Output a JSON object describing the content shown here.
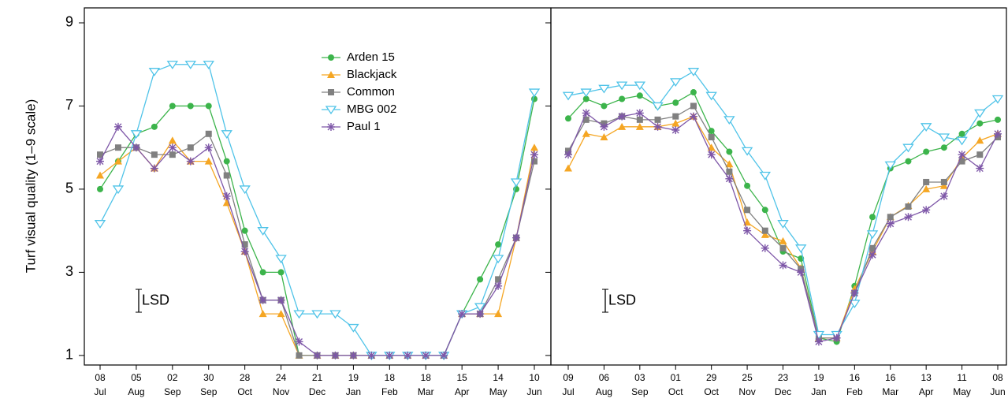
{
  "chart_data": [
    {
      "type": "line",
      "ylabel": "Turf visual quality (1–9 scale)",
      "ylim": [
        0.77,
        9.36
      ],
      "yticks": [
        1,
        3,
        5,
        7,
        9
      ],
      "categories": [
        [
          "08",
          "Jul"
        ],
        null,
        [
          "05",
          "Aug"
        ],
        null,
        [
          "02",
          "Sep"
        ],
        null,
        [
          "30",
          "Sep"
        ],
        null,
        [
          "28",
          "Oct"
        ],
        null,
        [
          "24",
          "Nov"
        ],
        null,
        [
          "21",
          "Dec"
        ],
        null,
        [
          "19",
          "Jan"
        ],
        null,
        [
          "18",
          "Feb"
        ],
        null,
        [
          "18",
          "Mar"
        ],
        null,
        [
          "15",
          "Apr"
        ],
        null,
        [
          "14",
          "May"
        ],
        null,
        [
          "10",
          "Jun"
        ]
      ],
      "annotation": "LSD",
      "lsd_low": 2.04,
      "lsd_high": 2.59,
      "series": [
        {
          "name": "Arden 15",
          "color": "#3cb44b",
          "marker": "circle",
          "values": [
            5.0,
            5.67,
            6.33,
            6.5,
            7.0,
            7.0,
            7.0,
            5.67,
            4.0,
            3.0,
            3.0,
            1.0,
            1,
            1,
            1,
            1,
            1,
            1,
            1,
            1,
            2.0,
            2.83,
            3.67,
            5.0,
            7.17
          ]
        },
        {
          "name": "Blackjack",
          "color": "#f5a623",
          "marker": "triangle",
          "values": [
            5.33,
            5.67,
            6.0,
            5.5,
            6.17,
            5.67,
            5.67,
            4.67,
            3.5,
            2.0,
            2.0,
            1.0,
            1,
            1,
            1,
            1,
            1,
            1,
            1,
            1,
            2.0,
            2.0,
            2.0,
            3.83,
            6.0
          ]
        },
        {
          "name": "Common",
          "color": "#808080",
          "marker": "square",
          "values": [
            5.83,
            6.0,
            6.0,
            5.83,
            5.83,
            6.0,
            6.33,
            5.33,
            3.67,
            2.33,
            2.33,
            1.0,
            1,
            1,
            1,
            1,
            1,
            1,
            1,
            1,
            2.0,
            2.0,
            2.83,
            3.83,
            5.67
          ]
        },
        {
          "name": "MBG 002",
          "color": "#4fc3e8",
          "marker": "triangle-down",
          "values": [
            4.17,
            5.0,
            6.33,
            7.83,
            8.0,
            8.0,
            8.0,
            6.33,
            5.0,
            4.0,
            3.33,
            2.0,
            2.0,
            2.0,
            1.67,
            1,
            1,
            1,
            1,
            1,
            2.0,
            2.17,
            3.33,
            5.17,
            7.33
          ]
        },
        {
          "name": "Paul 1",
          "color": "#7e57a8",
          "marker": "asterisk",
          "values": [
            5.67,
            6.5,
            6.0,
            5.5,
            6.0,
            5.67,
            6.0,
            4.83,
            3.5,
            2.33,
            2.33,
            1.33,
            1,
            1,
            1,
            1,
            1,
            1,
            1,
            1,
            2.0,
            2.0,
            2.67,
            3.83,
            5.83
          ]
        }
      ]
    },
    {
      "type": "line",
      "ylim": [
        0.77,
        9.36
      ],
      "categories": [
        [
          "09",
          "Jul"
        ],
        null,
        [
          "06",
          "Aug"
        ],
        null,
        [
          "03",
          "Sep"
        ],
        null,
        [
          "01",
          "Oct"
        ],
        null,
        [
          "29",
          "Oct"
        ],
        null,
        [
          "25",
          "Nov"
        ],
        null,
        [
          "23",
          "Dec"
        ],
        null,
        [
          "19",
          "Jan"
        ],
        null,
        [
          "16",
          "Feb"
        ],
        null,
        [
          "16",
          "Mar"
        ],
        null,
        [
          "13",
          "Apr"
        ],
        null,
        [
          "11",
          "May"
        ],
        null,
        [
          "08",
          "Jun"
        ]
      ],
      "annotation": "LSD",
      "lsd_low": 2.04,
      "lsd_high": 2.59,
      "series": [
        {
          "color": "#3cb44b",
          "marker": "circle",
          "values": [
            6.7,
            7.17,
            7.0,
            7.17,
            7.25,
            7.0,
            7.08,
            7.33,
            6.4,
            5.9,
            5.08,
            4.5,
            3.5,
            3.33,
            1.42,
            1.33,
            2.67,
            4.33,
            5.5,
            5.67,
            5.9,
            6.0,
            6.33,
            6.58,
            6.67
          ]
        },
        {
          "color": "#f5a623",
          "marker": "triangle",
          "values": [
            5.5,
            6.33,
            6.25,
            6.5,
            6.5,
            6.5,
            6.58,
            6.75,
            6.0,
            5.6,
            4.2,
            3.9,
            3.75,
            3.1,
            1.42,
            1.42,
            2.6,
            3.5,
            4.33,
            4.6,
            5.0,
            5.08,
            5.75,
            6.17,
            6.33
          ]
        },
        {
          "color": "#808080",
          "marker": "square",
          "values": [
            5.92,
            6.67,
            6.58,
            6.75,
            6.67,
            6.67,
            6.75,
            7.0,
            6.25,
            5.42,
            4.5,
            4.0,
            3.58,
            3.08,
            1.42,
            1.42,
            2.5,
            3.58,
            4.33,
            4.58,
            5.17,
            5.17,
            5.67,
            5.83,
            6.25
          ]
        },
        {
          "color": "#4fc3e8",
          "marker": "triangle-down",
          "values": [
            7.25,
            7.33,
            7.42,
            7.5,
            7.5,
            7.0,
            7.58,
            7.83,
            7.25,
            6.67,
            5.92,
            5.33,
            4.17,
            3.58,
            1.5,
            1.5,
            2.25,
            3.92,
            5.58,
            6.0,
            6.5,
            6.25,
            6.17,
            6.83,
            7.17
          ]
        },
        {
          "color": "#7e57a8",
          "marker": "asterisk",
          "values": [
            5.83,
            6.83,
            6.5,
            6.75,
            6.83,
            6.5,
            6.42,
            6.75,
            5.83,
            5.25,
            4.0,
            3.58,
            3.17,
            3.0,
            1.33,
            1.42,
            2.5,
            3.42,
            4.17,
            4.33,
            4.5,
            4.83,
            5.83,
            5.5,
            6.33
          ]
        }
      ]
    }
  ]
}
